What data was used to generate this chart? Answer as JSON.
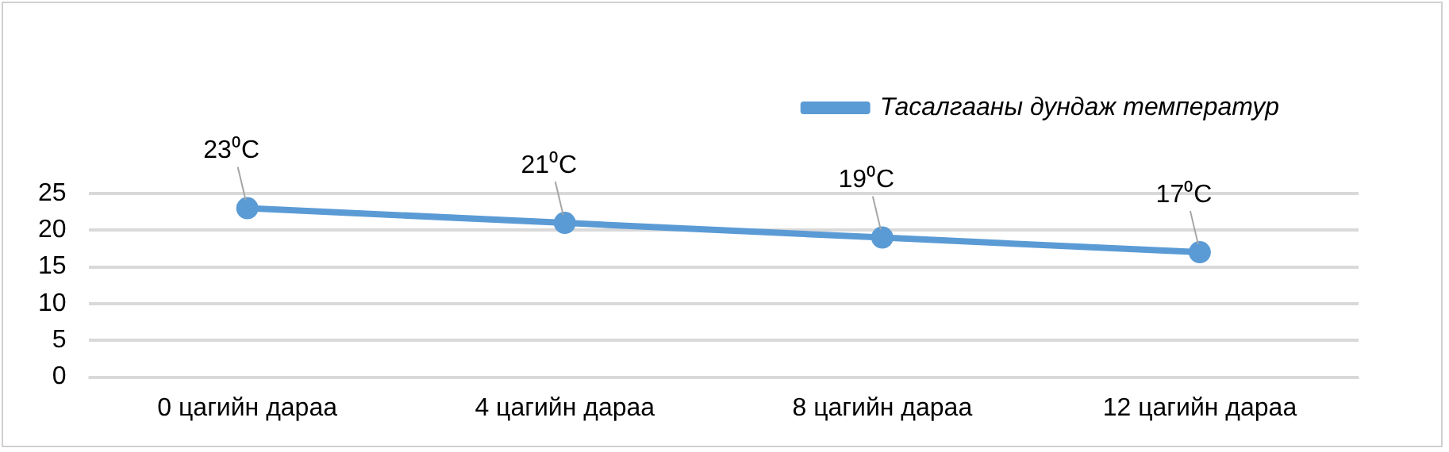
{
  "chart_data": {
    "type": "line",
    "categories": [
      "0 цагийн дараа",
      "4 цагийн дараа",
      "8 цагийн дараа",
      "12 цагийн дараа"
    ],
    "series": [
      {
        "name": "Тасалгааны дундаж температур",
        "color": "#5b9bd5",
        "values": [
          23,
          21,
          19,
          17
        ],
        "value_labels": [
          "23⁰C",
          "21⁰C",
          "19⁰C",
          "17⁰C"
        ]
      }
    ],
    "ylim": [
      0,
      25
    ],
    "yticks": [
      0,
      5,
      10,
      15,
      20,
      25
    ],
    "grid": "y",
    "legend": "top right",
    "marker": "circle",
    "line_style": "solid"
  }
}
